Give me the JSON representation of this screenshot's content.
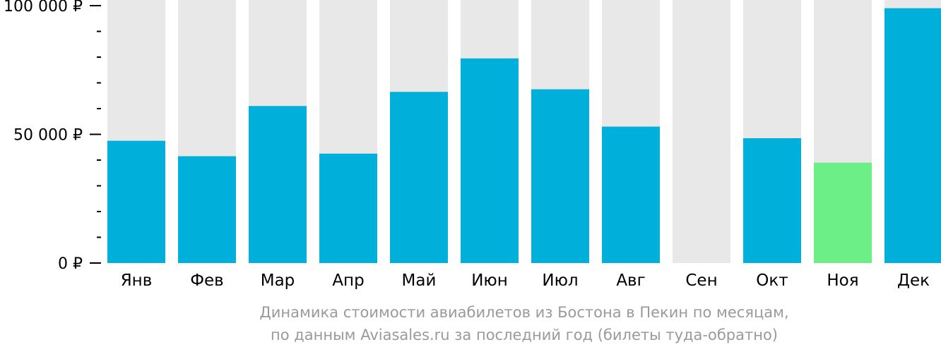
{
  "colors": {
    "bar": "#00B0DB",
    "bar_min": "#6BEF86",
    "background_bar": "#E8E8E8",
    "axis": "#000000",
    "caption": "#9A9A9A"
  },
  "chart_data": {
    "type": "bar",
    "categories": [
      "Янв",
      "Фев",
      "Мар",
      "Апр",
      "Май",
      "Июн",
      "Июл",
      "Авг",
      "Сен",
      "Окт",
      "Ноя",
      "Дек"
    ],
    "values": [
      47500,
      41500,
      61000,
      42500,
      66500,
      79500,
      67500,
      53000,
      null,
      48500,
      39000,
      99000
    ],
    "highlight_min_index": 10,
    "ylim": [
      0,
      100000
    ],
    "yticks": [
      0,
      50000,
      100000
    ],
    "ytick_labels": [
      "0 ₽",
      "50 000 ₽",
      "100 000 ₽"
    ],
    "minor_tick_step": 10000,
    "grid": false,
    "legend": "none"
  },
  "caption": {
    "line1": "Динамика стоимости авиабилетов из Бостона в Пекин по месяцам,",
    "line2": "по данным Aviasales.ru за последний год (билеты туда-обратно)"
  }
}
